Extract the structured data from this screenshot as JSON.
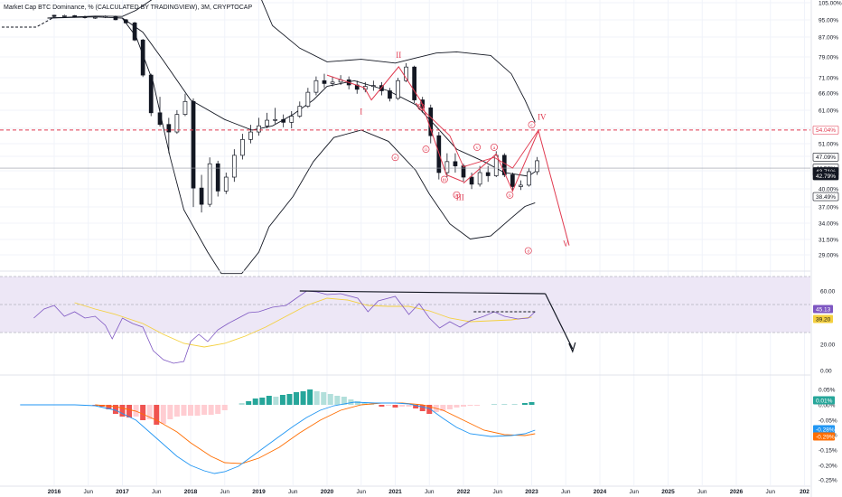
{
  "header": {
    "title": "Market Cap BTC Dominance, % (CALCULATED BY TRADINGVIEW), 3M, CRYPTOCAP"
  },
  "colors": {
    "up": "#26a69a",
    "down": "#ef5350",
    "wave": "#e0394f",
    "rsi": "#7e57c2",
    "rsi_ma": "#f4d03f",
    "macd": "#2196f3",
    "signal": "#ff6d00",
    "band": "#ede7f6"
  },
  "chart_data": [
    {
      "type": "candlestick",
      "title": "Market Cap BTC Dominance, % (CALCULATED BY TRADINGVIEW), 3M, CRYPTOCAP",
      "price_axis_ticks": [
        "105.00%",
        "95.00%",
        "87.00%",
        "79.00%",
        "71.00%",
        "66.00%",
        "61.00%",
        "56.00%",
        "51.00%",
        "47.00%",
        "44.00%",
        "40.00%",
        "37.00%",
        "34.00%",
        "31.50%",
        "29.00%"
      ],
      "time_axis_ticks": [
        "2016",
        "Jun",
        "2017",
        "Jun",
        "2018",
        "Jun",
        "2019",
        "Jun",
        "2020",
        "Jun",
        "2021",
        "Jun",
        "2022",
        "Jun",
        "2023",
        "Jun",
        "2024",
        "Jun",
        "2025",
        "Jun",
        "2026",
        "Jun",
        "202"
      ],
      "price_labels": [
        {
          "text": "54.04%",
          "value": 54.04,
          "color": "#e0394f"
        },
        {
          "text": "47.09%",
          "value": 47.09,
          "color": "#131722"
        },
        {
          "text": "44.50%",
          "value": 44.5,
          "color": "#131722"
        },
        {
          "text": "43.71%",
          "value": 43.71,
          "color": "#ffffff"
        },
        {
          "text": "42.79%",
          "value": 42.79,
          "color": "#ffffff"
        },
        {
          "text": "38.49%",
          "value": 38.49,
          "color": "#131722"
        }
      ],
      "resistance_level": 54.04,
      "wave_labels": [
        "I",
        "II",
        "III",
        "IV",
        "V"
      ],
      "sub_wave_labels": [
        "i",
        "ii",
        "iii",
        "iv",
        "v",
        "a",
        "b",
        "c",
        "d",
        "e"
      ]
    },
    {
      "type": "line",
      "name": "RSI",
      "axis_ticks": [
        "60.00",
        "20.00",
        "0.00"
      ],
      "current_values": [
        {
          "text": "45.13",
          "value": 45.13,
          "color": "#7e57c2"
        },
        {
          "text": "39.20",
          "value": 39.2,
          "color": "#f4d03f"
        }
      ]
    },
    {
      "type": "bar",
      "name": "MACD",
      "axis_ticks": [
        "0.05%",
        "0.00%",
        "-0.05%",
        "-0.10%",
        "-0.15%",
        "-0.20%",
        "-0.25%"
      ],
      "current_values": [
        {
          "text": "0.01%",
          "value": 0.01,
          "color": "#26a69a"
        },
        {
          "text": "-0.28%",
          "value": -0.28,
          "color": "#2196f3"
        },
        {
          "text": "-0.29%",
          "value": -0.29,
          "color": "#ff6d00"
        }
      ]
    }
  ]
}
